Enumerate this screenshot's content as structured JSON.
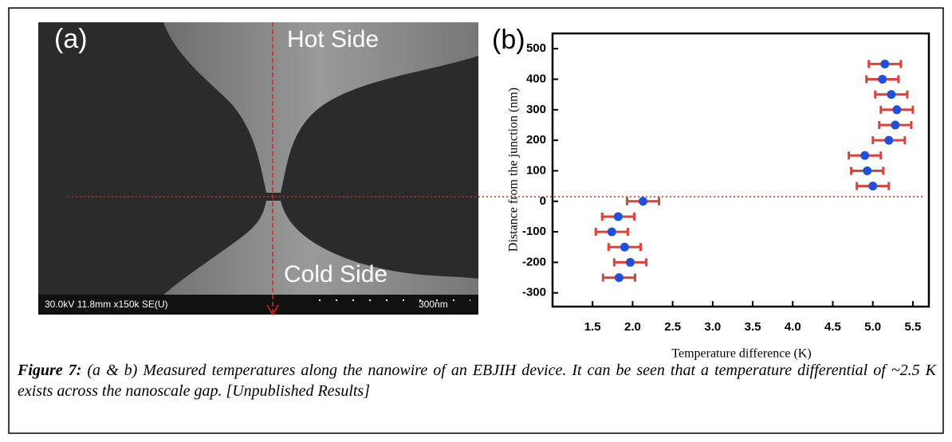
{
  "panel_a": {
    "label": "(a)",
    "hot": "Hot Side",
    "cold": "Cold Side",
    "info": "30.0kV 11.8mm x150k SE(U)",
    "scale": "300nm"
  },
  "chart_data": {
    "type": "scatter",
    "panel_label": "(b)",
    "xlabel": "Temperature difference (K)",
    "ylabel": "Distance from the junction (nm)",
    "x": [
      5.15,
      5.12,
      5.23,
      5.3,
      5.28,
      5.2,
      4.9,
      4.93,
      5.0,
      2.13,
      1.82,
      1.74,
      1.9,
      1.97,
      1.83
    ],
    "y": [
      450,
      400,
      350,
      300,
      250,
      200,
      150,
      100,
      50,
      0,
      -50,
      -100,
      -150,
      -200,
      -250
    ],
    "xerr": [
      0.2,
      0.2,
      0.2,
      0.2,
      0.2,
      0.2,
      0.2,
      0.2,
      0.2,
      0.2,
      0.2,
      0.2,
      0.2,
      0.2,
      0.2
    ],
    "color": "#1f4fe0",
    "error_color": "#e0403a",
    "xlim": [
      1.0,
      5.7
    ],
    "ylim": [
      -345,
      550
    ],
    "xticks": [
      1.5,
      {
        "value": 2,
        "label": "2.0"
      },
      2.5,
      {
        "value": 3,
        "label": "3.0"
      },
      3.5,
      {
        "value": 4,
        "label": "4.0"
      },
      4.5,
      {
        "value": 5,
        "label": "5.0"
      },
      5.5
    ],
    "yticks": [
      -300,
      -200,
      -100,
      0,
      100,
      200,
      300,
      400,
      500
    ]
  },
  "caption": {
    "lead": "Figure 7:",
    "text": "(a & b) Measured temperatures along the nanowire of an EBJIH device. It can be seen that a temperature differential of ~2.5 K exists across the nanoscale gap. [Unpublished Results]"
  }
}
